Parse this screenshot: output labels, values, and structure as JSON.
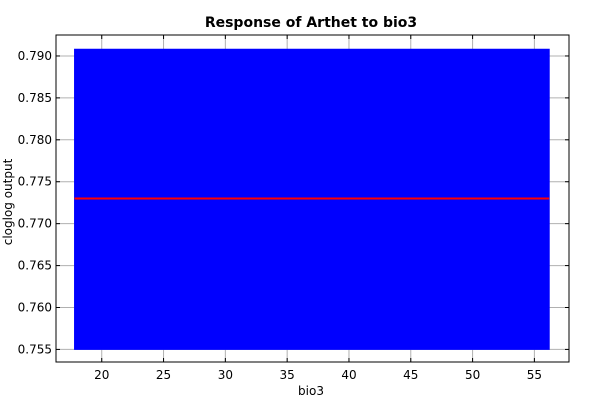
{
  "chart_data": {
    "type": "area",
    "title": "Response of Arthet to bio3",
    "xlabel": "bio3",
    "ylabel": "cloglog output",
    "xlim": [
      16.3,
      57.8
    ],
    "ylim": [
      0.7535,
      0.7925
    ],
    "x_ticks": [
      20,
      25,
      30,
      35,
      40,
      45,
      50,
      55
    ],
    "y_ticks": [
      0.755,
      0.76,
      0.765,
      0.77,
      0.775,
      0.78,
      0.785,
      0.79
    ],
    "y_tick_labels": [
      "0.755",
      "0.760",
      "0.765",
      "0.770",
      "0.775",
      "0.780",
      "0.785",
      "0.790"
    ],
    "grid": true,
    "band": {
      "x": [
        17.8,
        56.2
      ],
      "lower": [
        0.755,
        0.755
      ],
      "upper": [
        0.7908,
        0.7908
      ],
      "color": "#0000ff"
    },
    "series": [
      {
        "x": [
          17.8,
          56.2
        ],
        "values": [
          0.773,
          0.773
        ],
        "color": "#ff0000"
      }
    ]
  }
}
